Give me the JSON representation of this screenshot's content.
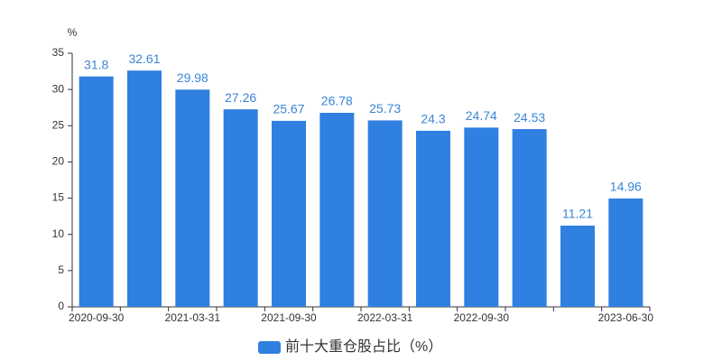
{
  "chart_data": {
    "type": "bar",
    "y_unit": "%",
    "categories": [
      "2020-09-30",
      null,
      "2021-03-31",
      null,
      "2021-09-30",
      null,
      "2022-03-31",
      null,
      "2022-09-30",
      null,
      null,
      "2023-06-30"
    ],
    "series": [
      {
        "name": "前十大重仓股占比（%）",
        "color": "#2f80e0",
        "values": [
          31.8,
          32.61,
          29.98,
          27.26,
          25.67,
          26.78,
          25.73,
          24.3,
          24.74,
          24.53,
          11.21,
          14.96
        ]
      }
    ],
    "ylim": [
      0,
      35
    ],
    "yticks": [
      0,
      5,
      10,
      15,
      20,
      25,
      30,
      35
    ],
    "grid": false,
    "legend": "bottom"
  }
}
